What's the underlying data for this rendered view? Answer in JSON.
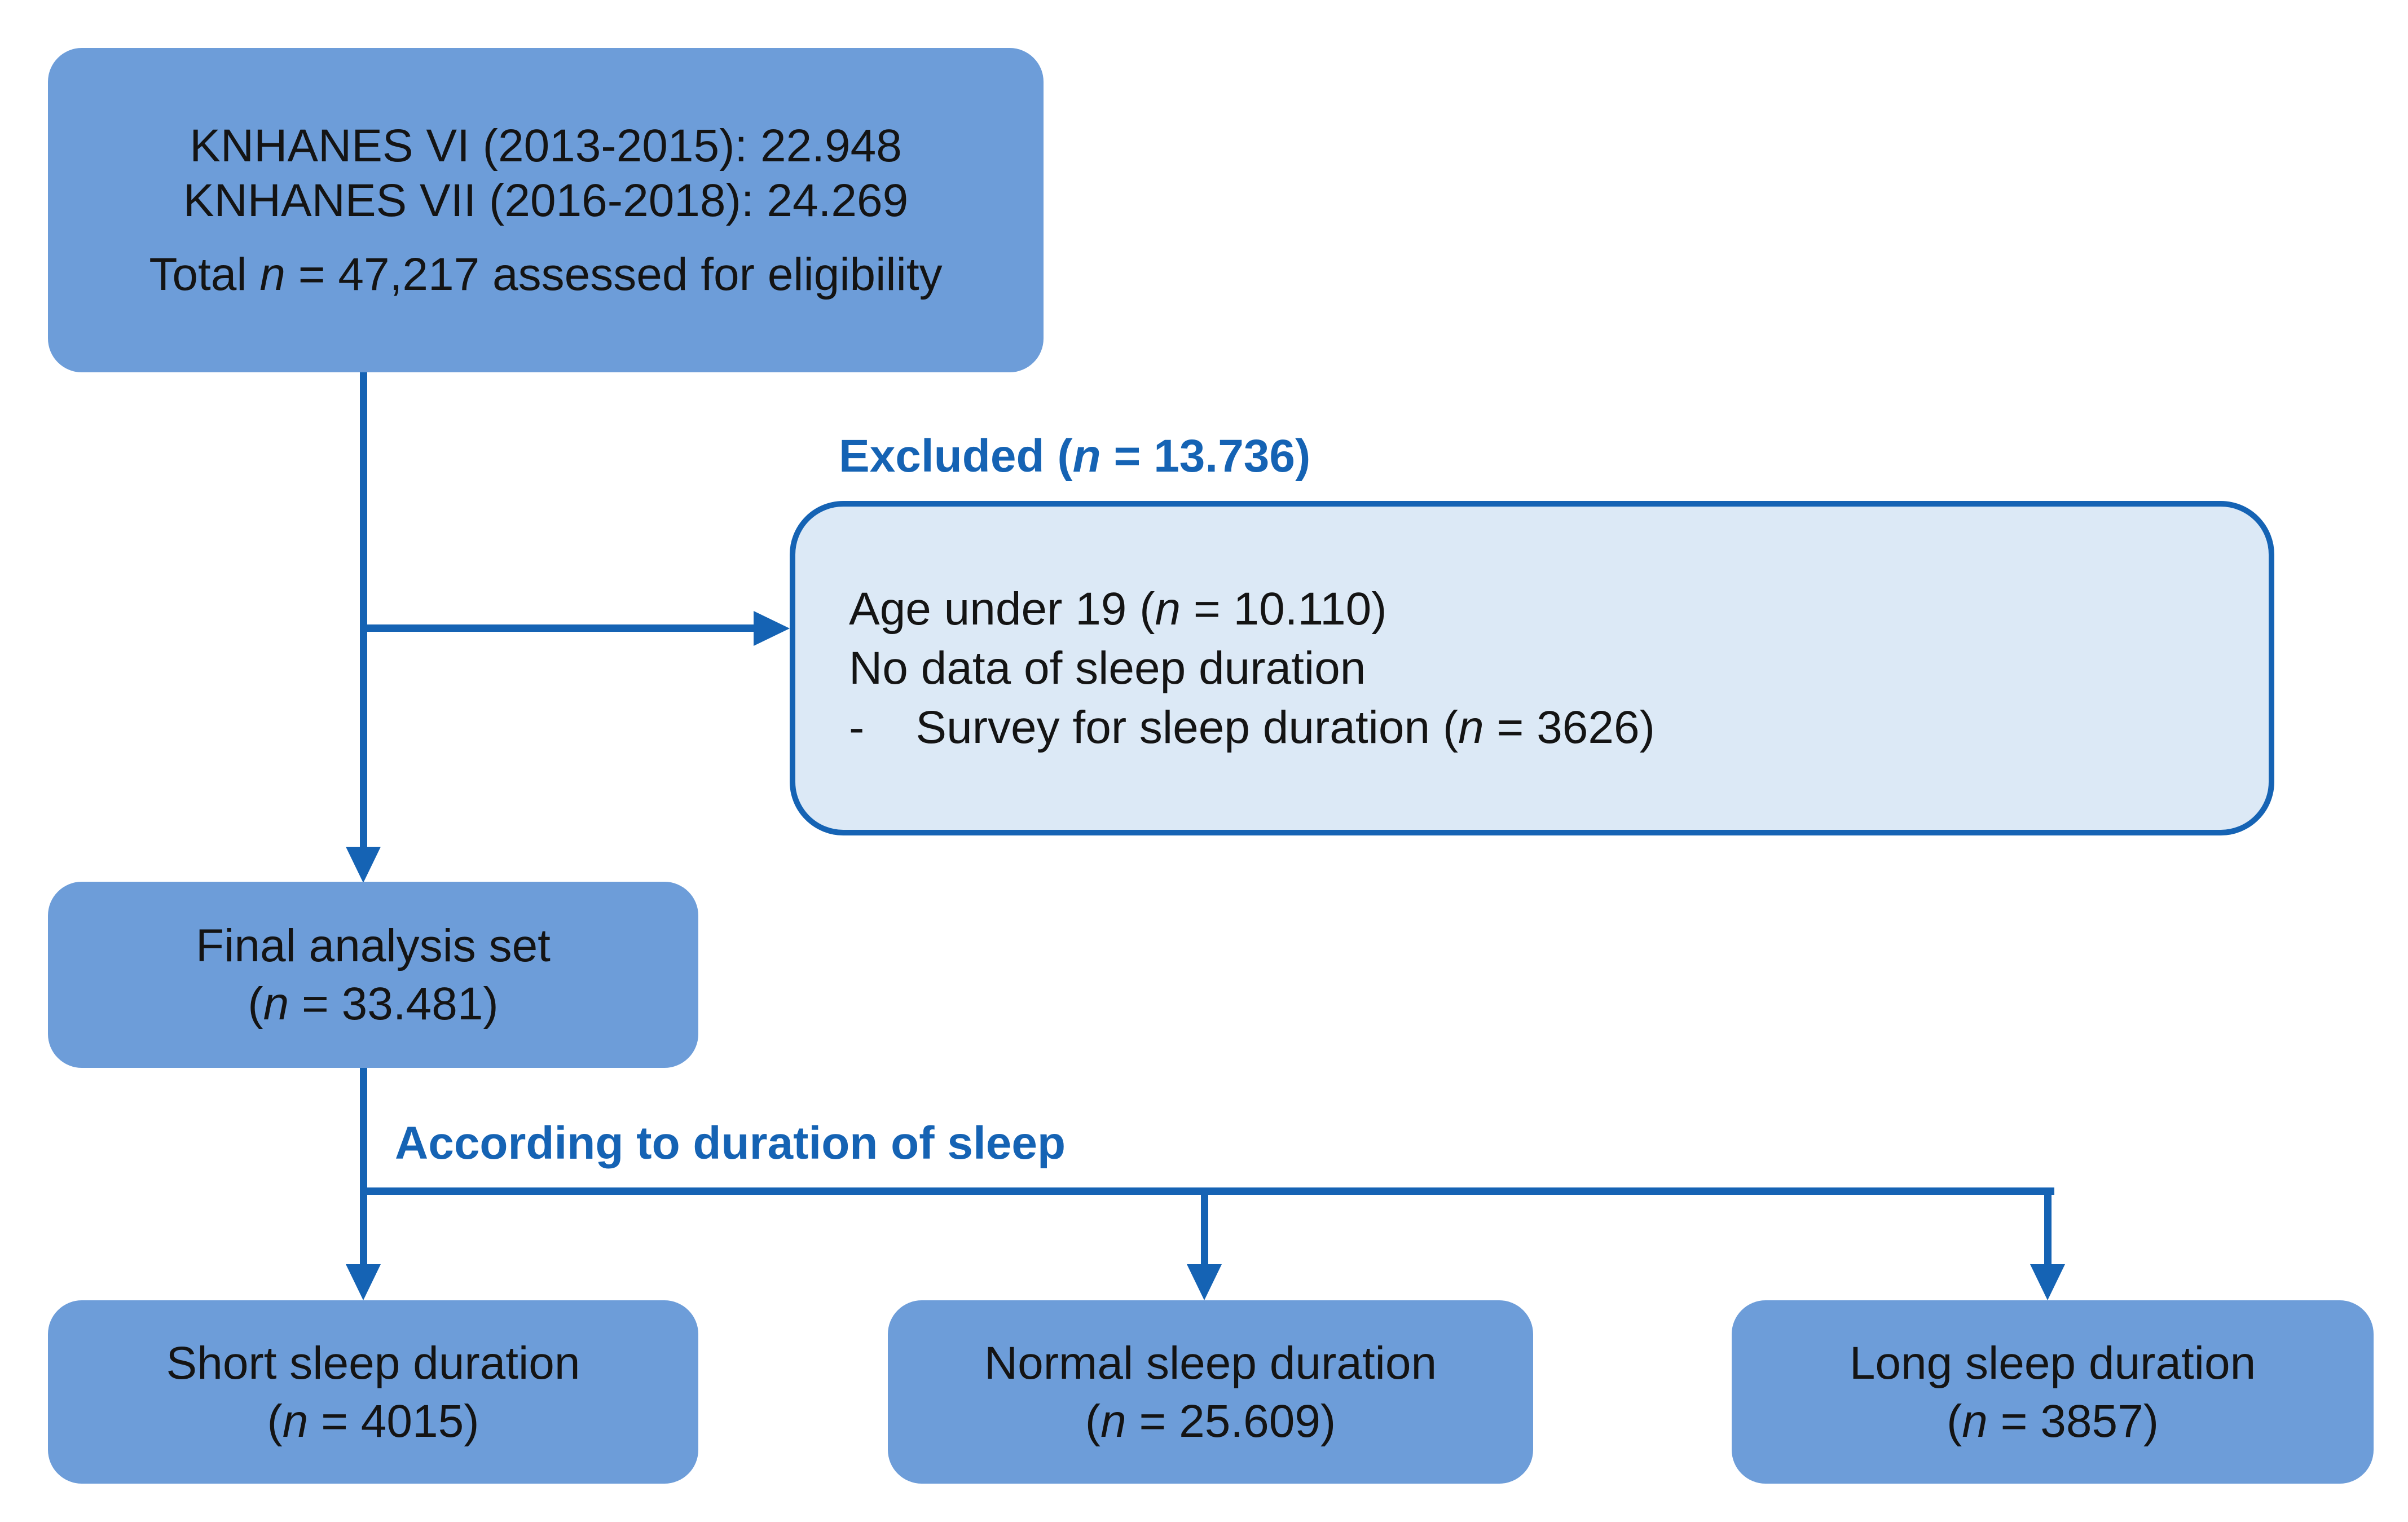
{
  "colors": {
    "accent": "#1563b4",
    "box_fill": "#6d9dd9",
    "excluded_fill": "#dce9f6",
    "text_dark": "#141414",
    "background": "#ffffff"
  },
  "eligibility_box": {
    "line1": "KNHANES VI (2013-2015): 22.948",
    "line2": "KNHANES VII (2016-2018): 24.269",
    "total": "Total n = 47,217 assessed for eligibility"
  },
  "excluded": {
    "label": "Excluded (n = 13.736)",
    "line1": "Age under 19 (n = 10.110)",
    "line2": "No data of sleep duration",
    "line3": "-    Survey for sleep duration (n = 3626)"
  },
  "final_box": {
    "line1": "Final analysis set",
    "line2": "(n = 33.481)"
  },
  "branch_label": "According to duration of sleep",
  "outcome_boxes": [
    {
      "line1": "Short sleep duration",
      "line2": "(n = 4015)"
    },
    {
      "line1": "Normal sleep duration",
      "line2": "(n = 25.609)"
    },
    {
      "line1": "Long sleep duration",
      "line2": "(n = 3857)"
    }
  ]
}
